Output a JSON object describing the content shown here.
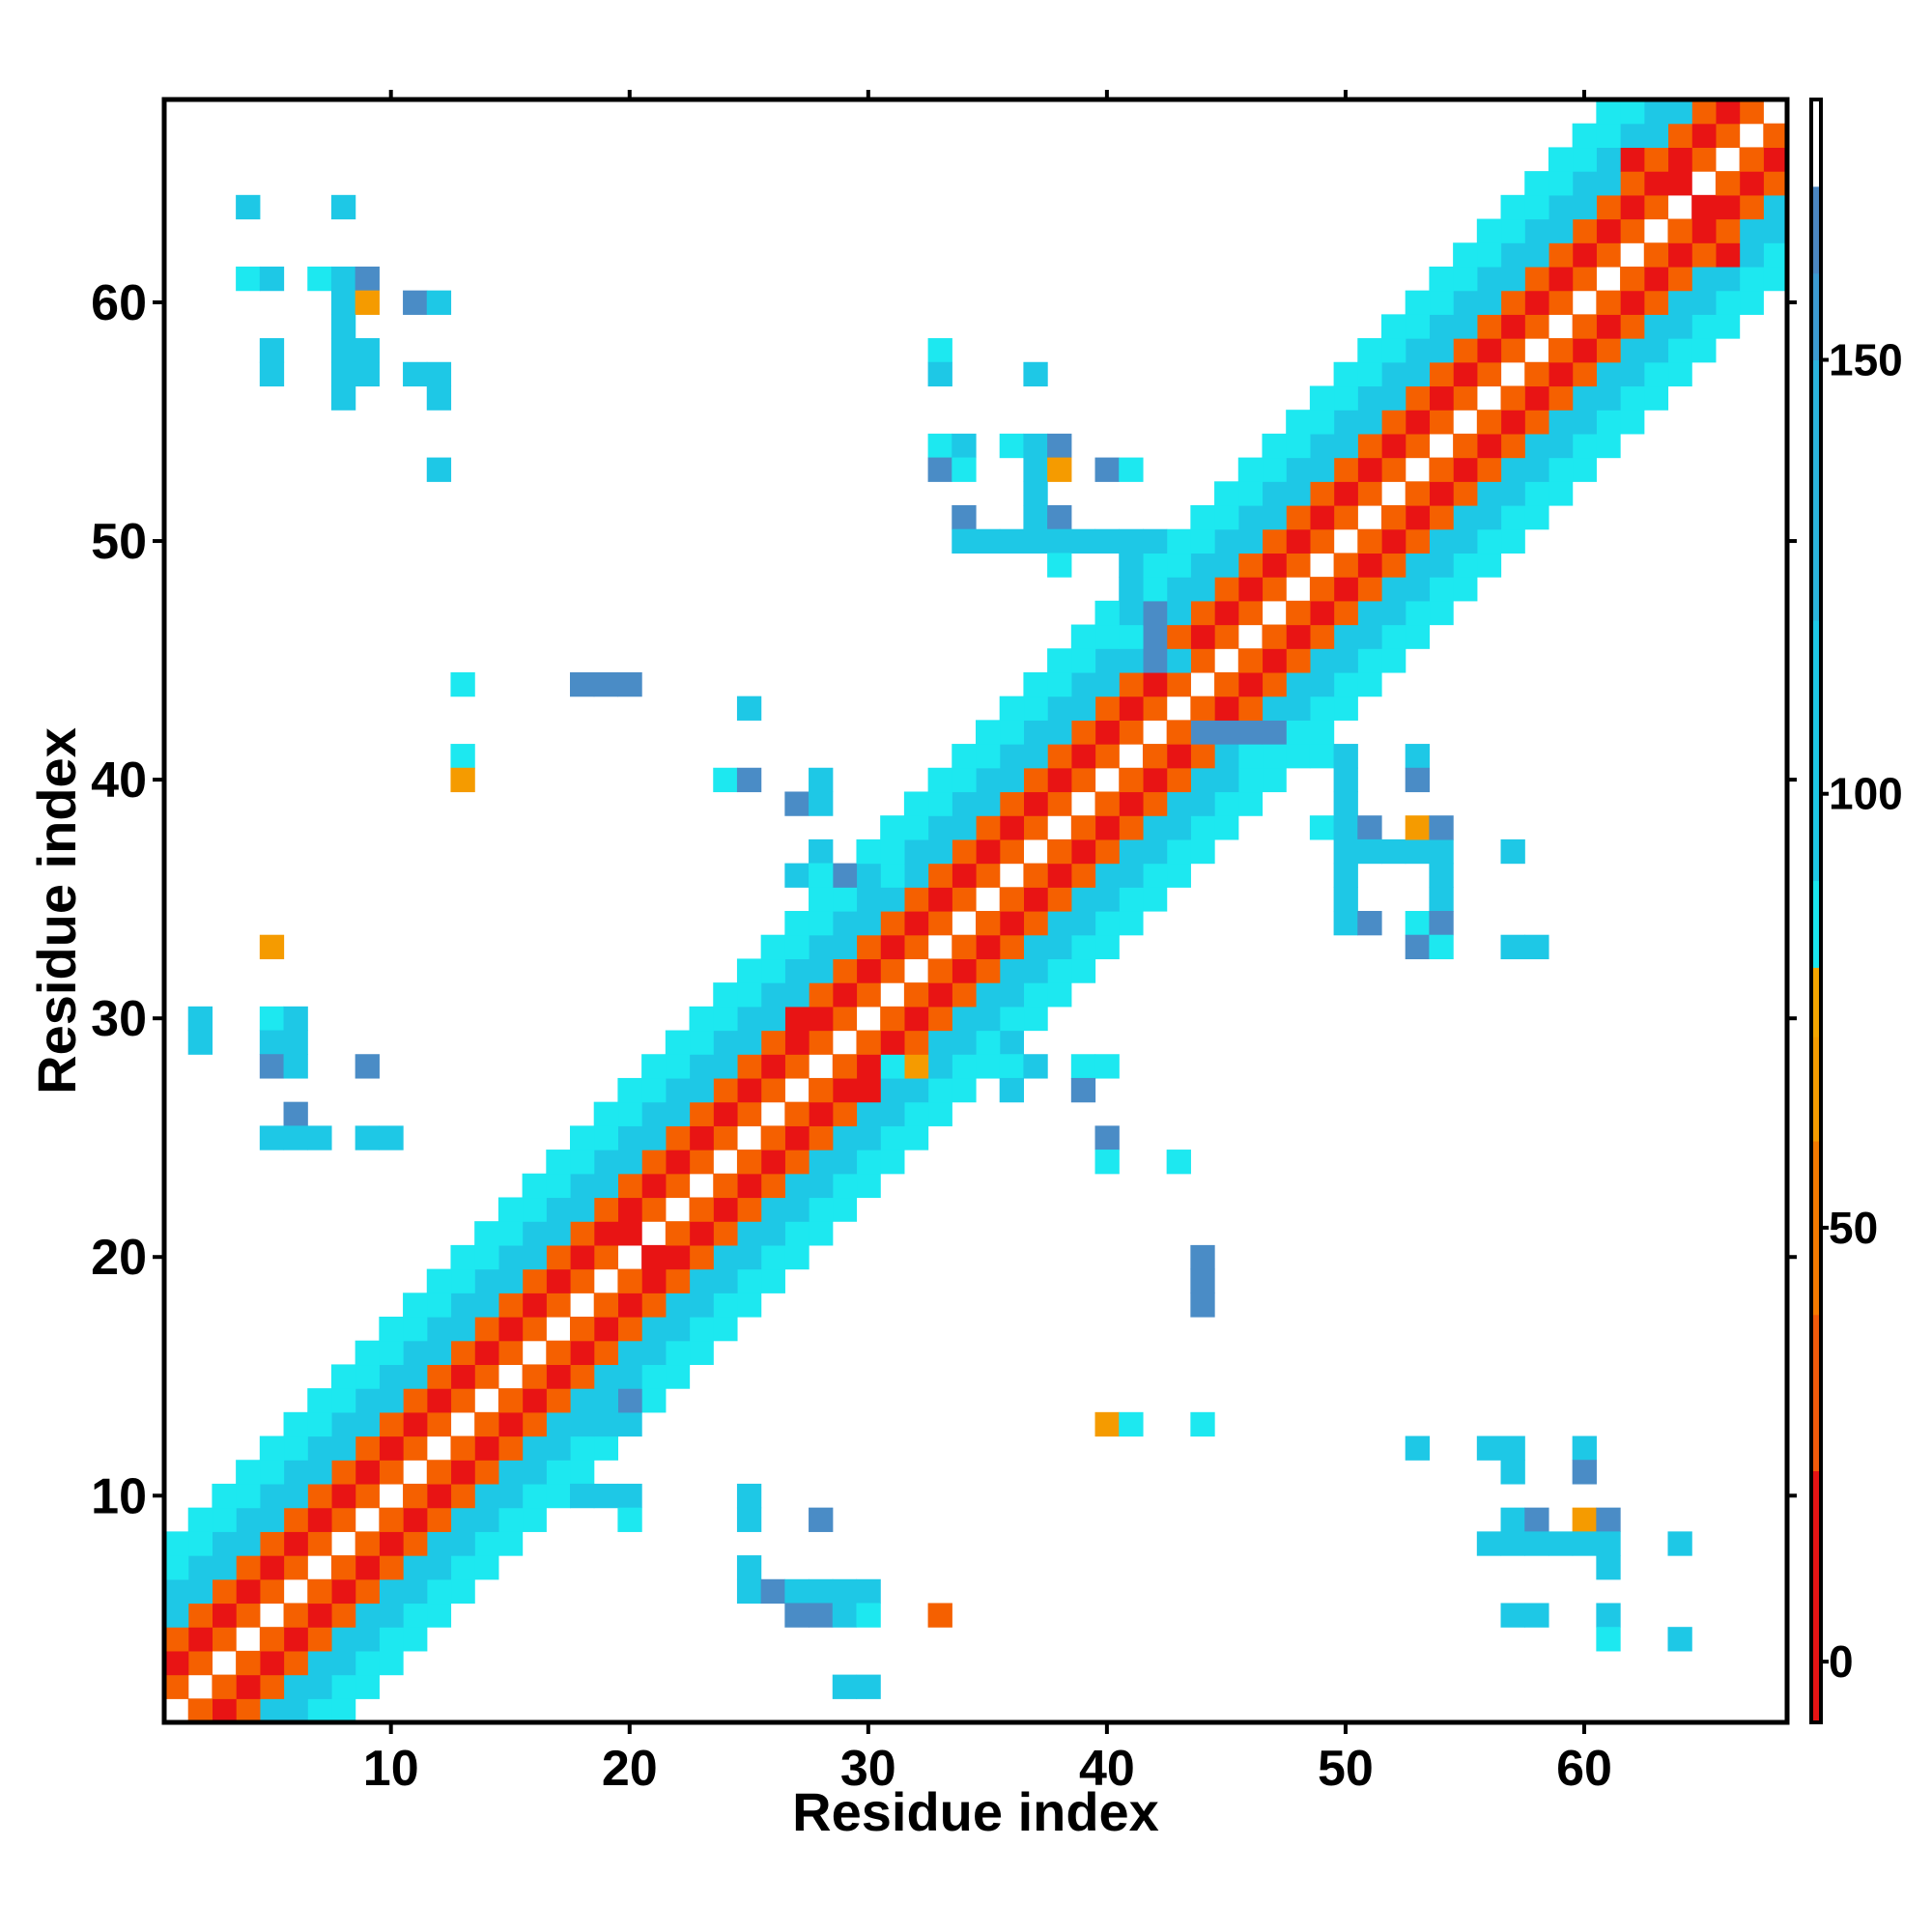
{
  "chart_data": {
    "type": "heatmap",
    "title": "",
    "xlabel": "Residue index",
    "ylabel": "Residue index",
    "xlim": [
      0.5,
      68.5
    ],
    "ylim": [
      0.5,
      68.5
    ],
    "x_ticks": [
      10,
      20,
      30,
      40,
      50,
      60
    ],
    "y_ticks": [
      10,
      20,
      30,
      40,
      50,
      60
    ],
    "grid": false,
    "colorbar": {
      "range": [
        -7,
        180
      ],
      "ticks": [
        0,
        50,
        100,
        150
      ],
      "bands": [
        {
          "from": -7,
          "to": 22,
          "color": "#e51414"
        },
        {
          "from": 22,
          "to": 40,
          "color": "#f05a0a"
        },
        {
          "from": 40,
          "to": 60,
          "color": "#f57a00"
        },
        {
          "from": 60,
          "to": 72,
          "color": "#f59b00"
        },
        {
          "from": 72,
          "to": 80,
          "color": "#f5a500"
        },
        {
          "from": 80,
          "to": 90,
          "color": "#1ae6ee"
        },
        {
          "from": 90,
          "to": 120,
          "color": "#1ec8e6"
        },
        {
          "from": 120,
          "to": 150,
          "color": "#2bb3dc"
        },
        {
          "from": 150,
          "to": 160,
          "color": "#3c9ad1"
        },
        {
          "from": 160,
          "to": 170,
          "color": "#4a86c2"
        },
        {
          "from": 170,
          "to": 180,
          "color": "#ffffff"
        }
      ]
    },
    "palette": {
      "r": "#e81414",
      "o": "#f56000",
      "a": "#f59b00",
      "c": "#1de8f0",
      "t": "#1ec8e6",
      "b": "#4a8cc6"
    },
    "band_pattern": {
      "-7": "c",
      "-6": "c",
      "-5": "t",
      "-4": "t",
      "-3": "o",
      "-2": "r",
      "-1": "o",
      "1": "o",
      "2": "r",
      "3": "o",
      "4": "t",
      "5": "t",
      "6": "c",
      "7": "c"
    },
    "extra_cells": [
      [
        4,
        64,
        "t"
      ],
      [
        8,
        64,
        "t"
      ],
      [
        4,
        61,
        "c"
      ],
      [
        5,
        61,
        "t"
      ],
      [
        7,
        61,
        "c"
      ],
      [
        8,
        61,
        "t"
      ],
      [
        9,
        61,
        "b"
      ],
      [
        8,
        60,
        "t"
      ],
      [
        9,
        60,
        "a"
      ],
      [
        11,
        60,
        "b"
      ],
      [
        12,
        60,
        "t"
      ],
      [
        8,
        59,
        "t"
      ],
      [
        5,
        58,
        "t"
      ],
      [
        8,
        58,
        "t"
      ],
      [
        9,
        58,
        "t"
      ],
      [
        5,
        57,
        "t"
      ],
      [
        8,
        57,
        "t"
      ],
      [
        9,
        57,
        "t"
      ],
      [
        11,
        57,
        "t"
      ],
      [
        12,
        57,
        "t"
      ],
      [
        8,
        56,
        "t"
      ],
      [
        12,
        56,
        "t"
      ],
      [
        12,
        53,
        "t"
      ],
      [
        33,
        58,
        "c"
      ],
      [
        33,
        57,
        "t"
      ],
      [
        37,
        57,
        "t"
      ],
      [
        33,
        54,
        "c"
      ],
      [
        34,
        54,
        "t"
      ],
      [
        36,
        54,
        "c"
      ],
      [
        37,
        54,
        "t"
      ],
      [
        38,
        54,
        "b"
      ],
      [
        33,
        53,
        "b"
      ],
      [
        34,
        53,
        "c"
      ],
      [
        37,
        53,
        "t"
      ],
      [
        38,
        53,
        "a"
      ],
      [
        40,
        53,
        "b"
      ],
      [
        41,
        53,
        "c"
      ],
      [
        37,
        52,
        "t"
      ],
      [
        34,
        51,
        "b"
      ],
      [
        37,
        51,
        "t"
      ],
      [
        38,
        51,
        "b"
      ],
      [
        34,
        50,
        "t"
      ],
      [
        35,
        50,
        "t"
      ],
      [
        36,
        50,
        "t"
      ],
      [
        37,
        50,
        "t"
      ],
      [
        38,
        50,
        "t"
      ],
      [
        39,
        50,
        "t"
      ],
      [
        40,
        50,
        "t"
      ],
      [
        41,
        50,
        "t"
      ],
      [
        42,
        50,
        "t"
      ],
      [
        38,
        49,
        "c"
      ],
      [
        41,
        49,
        "t"
      ],
      [
        41,
        48,
        "t"
      ],
      [
        41,
        47,
        "t"
      ],
      [
        42,
        47,
        "b"
      ],
      [
        42,
        46,
        "b"
      ],
      [
        41,
        46,
        "c"
      ],
      [
        42,
        45,
        "b"
      ],
      [
        43,
        45,
        "t"
      ],
      [
        13,
        44,
        "c"
      ],
      [
        18,
        44,
        "b"
      ],
      [
        19,
        44,
        "b"
      ],
      [
        20,
        44,
        "b"
      ],
      [
        25,
        43,
        "t"
      ],
      [
        13,
        41,
        "c"
      ],
      [
        13,
        40,
        "a"
      ],
      [
        24,
        40,
        "c"
      ],
      [
        25,
        40,
        "b"
      ],
      [
        27,
        39,
        "b"
      ],
      [
        28,
        40,
        "t"
      ],
      [
        28,
        39,
        "t"
      ],
      [
        28,
        37,
        "t"
      ],
      [
        27,
        36,
        "t"
      ],
      [
        28,
        36,
        "c"
      ],
      [
        29,
        36,
        "b"
      ],
      [
        30,
        36,
        "t"
      ],
      [
        31,
        36,
        "c"
      ],
      [
        44,
        42,
        "b"
      ],
      [
        45,
        42,
        "b"
      ],
      [
        46,
        42,
        "b"
      ],
      [
        47,
        42,
        "b"
      ],
      [
        46,
        41,
        "c"
      ],
      [
        47,
        41,
        "c"
      ],
      [
        48,
        41,
        "c"
      ],
      [
        49,
        41,
        "c"
      ],
      [
        50,
        41,
        "t"
      ],
      [
        50,
        40,
        "t"
      ],
      [
        50,
        39,
        "t"
      ],
      [
        49,
        38,
        "c"
      ],
      [
        50,
        38,
        "t"
      ],
      [
        51,
        38,
        "b"
      ],
      [
        50,
        37,
        "t"
      ],
      [
        51,
        37,
        "t"
      ],
      [
        52,
        37,
        "t"
      ],
      [
        53,
        37,
        "t"
      ],
      [
        54,
        37,
        "t"
      ],
      [
        53,
        38,
        "a"
      ],
      [
        54,
        38,
        "b"
      ],
      [
        53,
        41,
        "t"
      ],
      [
        53,
        40,
        "b"
      ],
      [
        57,
        37,
        "t"
      ],
      [
        50,
        36,
        "t"
      ],
      [
        54,
        36,
        "t"
      ],
      [
        50,
        35,
        "t"
      ],
      [
        54,
        35,
        "t"
      ],
      [
        50,
        34,
        "t"
      ],
      [
        51,
        34,
        "b"
      ],
      [
        53,
        34,
        "c"
      ],
      [
        54,
        34,
        "b"
      ],
      [
        53,
        33,
        "b"
      ],
      [
        54,
        33,
        "c"
      ],
      [
        57,
        33,
        "t"
      ],
      [
        58,
        33,
        "t"
      ],
      [
        5,
        33,
        "a"
      ],
      [
        2,
        30,
        "t"
      ],
      [
        2,
        29,
        "t"
      ],
      [
        5,
        30,
        "c"
      ],
      [
        6,
        30,
        "t"
      ],
      [
        5,
        29,
        "t"
      ],
      [
        6,
        29,
        "t"
      ],
      [
        5,
        28,
        "b"
      ],
      [
        6,
        28,
        "t"
      ],
      [
        9,
        28,
        "b"
      ],
      [
        6,
        26,
        "b"
      ],
      [
        5,
        25,
        "t"
      ],
      [
        6,
        25,
        "t"
      ],
      [
        7,
        25,
        "t"
      ],
      [
        9,
        25,
        "t"
      ],
      [
        10,
        25,
        "t"
      ],
      [
        36,
        29,
        "t"
      ],
      [
        36,
        28,
        "c"
      ],
      [
        36,
        27,
        "t"
      ],
      [
        37,
        28,
        "t"
      ],
      [
        39,
        28,
        "c"
      ],
      [
        40,
        28,
        "c"
      ],
      [
        39,
        27,
        "b"
      ],
      [
        40,
        25,
        "b"
      ],
      [
        40,
        24,
        "c"
      ],
      [
        43,
        24,
        "c"
      ],
      [
        44,
        20,
        "b"
      ],
      [
        44,
        19,
        "b"
      ],
      [
        44,
        18,
        "b"
      ],
      [
        19,
        14,
        "t"
      ],
      [
        20,
        14,
        "b"
      ],
      [
        19,
        13,
        "t"
      ],
      [
        20,
        13,
        "t"
      ],
      [
        18,
        10,
        "t"
      ],
      [
        19,
        10,
        "t"
      ],
      [
        20,
        10,
        "t"
      ],
      [
        20,
        9,
        "c"
      ],
      [
        25,
        10,
        "t"
      ],
      [
        25,
        9,
        "t"
      ],
      [
        25,
        7,
        "t"
      ],
      [
        25,
        6,
        "t"
      ],
      [
        26,
        6,
        "b"
      ],
      [
        27,
        6,
        "t"
      ],
      [
        28,
        6,
        "t"
      ],
      [
        29,
        6,
        "t"
      ],
      [
        30,
        6,
        "t"
      ],
      [
        27,
        5,
        "b"
      ],
      [
        28,
        5,
        "b"
      ],
      [
        29,
        5,
        "t"
      ],
      [
        30,
        5,
        "c"
      ],
      [
        29,
        2,
        "t"
      ],
      [
        30,
        2,
        "t"
      ],
      [
        28,
        9,
        "b"
      ],
      [
        33,
        5,
        "o"
      ],
      [
        40,
        13,
        "a"
      ],
      [
        41,
        13,
        "c"
      ],
      [
        44,
        13,
        "c"
      ],
      [
        53,
        12,
        "t"
      ],
      [
        56,
        12,
        "t"
      ],
      [
        57,
        12,
        "t"
      ],
      [
        60,
        12,
        "t"
      ],
      [
        57,
        11,
        "t"
      ],
      [
        60,
        11,
        "b"
      ],
      [
        57,
        9,
        "t"
      ],
      [
        58,
        9,
        "b"
      ],
      [
        60,
        9,
        "a"
      ],
      [
        61,
        9,
        "b"
      ],
      [
        56,
        8,
        "t"
      ],
      [
        57,
        8,
        "t"
      ],
      [
        58,
        8,
        "t"
      ],
      [
        59,
        8,
        "t"
      ],
      [
        60,
        8,
        "t"
      ],
      [
        61,
        8,
        "t"
      ],
      [
        64,
        8,
        "t"
      ],
      [
        61,
        7,
        "t"
      ],
      [
        57,
        5,
        "t"
      ],
      [
        58,
        5,
        "t"
      ],
      [
        61,
        5,
        "t"
      ],
      [
        61,
        4,
        "c"
      ],
      [
        64,
        4,
        "t"
      ],
      [
        21,
        20,
        "r"
      ],
      [
        22,
        20,
        "r"
      ],
      [
        19,
        21,
        "r"
      ],
      [
        20,
        21,
        "r"
      ],
      [
        29,
        27,
        "r"
      ],
      [
        30,
        27,
        "r"
      ],
      [
        27,
        29,
        "r"
      ],
      [
        27,
        30,
        "r"
      ],
      [
        31,
        28,
        "c"
      ],
      [
        32,
        28,
        "a"
      ],
      [
        33,
        28,
        "t"
      ],
      [
        64,
        65,
        "r"
      ],
      [
        65,
        64,
        "r"
      ],
      [
        62,
        66,
        "r"
      ],
      [
        66,
        62,
        "r"
      ]
    ]
  }
}
